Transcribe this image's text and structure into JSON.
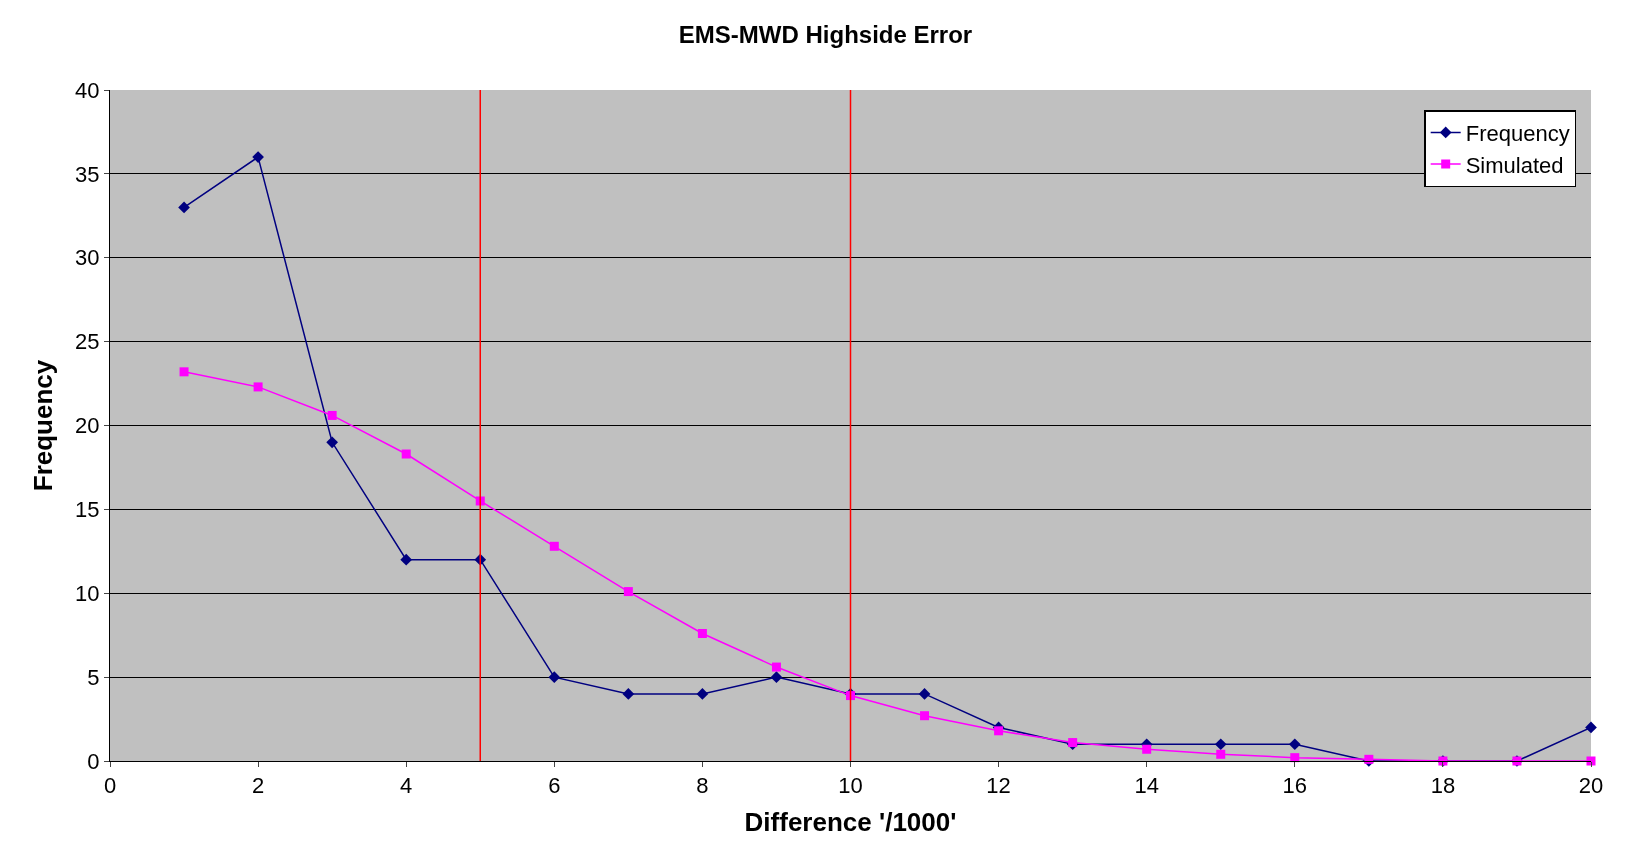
{
  "chart_data": {
    "type": "line",
    "title": "EMS-MWD Highside Error",
    "xlabel": "Difference '/1000'",
    "ylabel": "Frequency",
    "x": [
      1,
      2,
      3,
      4,
      5,
      6,
      7,
      8,
      9,
      10,
      11,
      12,
      13,
      14,
      15,
      16,
      17,
      18,
      19,
      20
    ],
    "series": [
      {
        "name": "Frequency",
        "color": "#000080",
        "marker": "diamond",
        "values": [
          33,
          36,
          19,
          12,
          12,
          5,
          4,
          4,
          5,
          4,
          4,
          2,
          1,
          1,
          1,
          1,
          0,
          0,
          0,
          2
        ]
      },
      {
        "name": "Simulated",
        "color": "#ff00ff",
        "marker": "square",
        "values": [
          23.2,
          22.3,
          20.6,
          18.3,
          15.5,
          12.8,
          10.1,
          7.6,
          5.6,
          3.9,
          2.7,
          1.8,
          1.1,
          0.7,
          0.4,
          0.2,
          0.1,
          0,
          0,
          0
        ]
      }
    ],
    "xlim": [
      0,
      20
    ],
    "xticks": [
      0,
      2,
      4,
      6,
      8,
      10,
      12,
      14,
      16,
      18,
      20
    ],
    "ylim": [
      0,
      40
    ],
    "yticks": [
      0,
      5,
      10,
      15,
      20,
      25,
      30,
      35,
      40
    ],
    "ref_lines": [
      {
        "axis": "x",
        "value": 5,
        "color": "#ff0000"
      },
      {
        "axis": "x",
        "value": 10,
        "color": "#ff0000"
      }
    ],
    "grid": "y",
    "legend": "top right"
  }
}
